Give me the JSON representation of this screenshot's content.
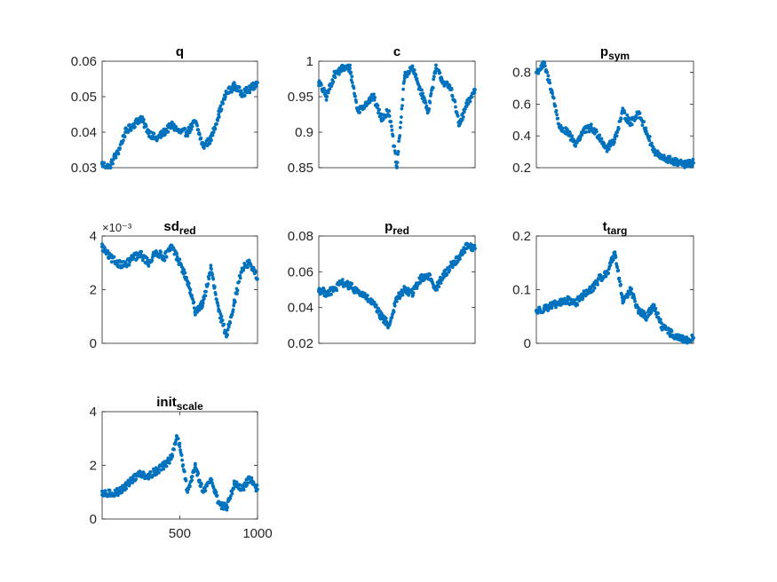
{
  "figure": {
    "background": "#ffffff",
    "marker_color": "#0072BD"
  },
  "chart_data": [
    {
      "id": "q",
      "type": "scatter",
      "title": "q",
      "title_sub": "",
      "xlabel": "",
      "ylabel": "",
      "xlim": [
        1,
        1000
      ],
      "ylim": [
        0.03,
        0.06
      ],
      "yticks": [
        0.03,
        0.04,
        0.05,
        0.06
      ],
      "ytick_labels": [
        "0.03",
        "0.04",
        "0.05",
        "0.06"
      ],
      "xticks": [],
      "xtick_labels": [],
      "exponent_label": "",
      "x": [
        1,
        50,
        80,
        100,
        150,
        200,
        250,
        300,
        350,
        400,
        450,
        500,
        550,
        600,
        650,
        700,
        750,
        800,
        850,
        900,
        950,
        1000
      ],
      "y": [
        0.031,
        0.03,
        0.033,
        0.034,
        0.04,
        0.042,
        0.044,
        0.04,
        0.038,
        0.04,
        0.042,
        0.04,
        0.04,
        0.043,
        0.036,
        0.038,
        0.045,
        0.051,
        0.053,
        0.051,
        0.052,
        0.054
      ]
    },
    {
      "id": "c",
      "type": "scatter",
      "title": "c",
      "title_sub": "",
      "xlabel": "",
      "ylabel": "",
      "xlim": [
        1,
        1000
      ],
      "ylim": [
        0.85,
        1
      ],
      "yticks": [
        0.85,
        0.9,
        0.95,
        1
      ],
      "ytick_labels": [
        "0.85",
        "0.9",
        "0.95",
        "1"
      ],
      "xticks": [],
      "xtick_labels": [],
      "exponent_label": "",
      "x": [
        1,
        50,
        100,
        150,
        200,
        250,
        300,
        350,
        400,
        450,
        500,
        550,
        600,
        650,
        700,
        750,
        800,
        850,
        900,
        950,
        1000
      ],
      "y": [
        0.97,
        0.95,
        0.98,
        0.99,
        0.99,
        0.93,
        0.94,
        0.95,
        0.92,
        0.93,
        0.85,
        0.98,
        0.99,
        0.96,
        0.93,
        0.99,
        0.97,
        0.96,
        0.91,
        0.94,
        0.96
      ]
    },
    {
      "id": "p_sym",
      "type": "scatter",
      "title": "p",
      "title_sub": "sym",
      "xlabel": "",
      "ylabel": "",
      "xlim": [
        1,
        1000
      ],
      "ylim": [
        0.2,
        0.87
      ],
      "yticks": [
        0.2,
        0.4,
        0.6,
        0.8
      ],
      "ytick_labels": [
        "0.2",
        "0.4",
        "0.6",
        "0.8"
      ],
      "xticks": [],
      "xtick_labels": [],
      "exponent_label": "",
      "x": [
        1,
        50,
        80,
        100,
        150,
        200,
        250,
        300,
        350,
        400,
        450,
        500,
        550,
        600,
        650,
        700,
        750,
        800,
        850,
        900,
        950,
        1000
      ],
      "y": [
        0.8,
        0.85,
        0.75,
        0.68,
        0.45,
        0.42,
        0.35,
        0.43,
        0.45,
        0.4,
        0.32,
        0.38,
        0.55,
        0.48,
        0.55,
        0.43,
        0.3,
        0.26,
        0.25,
        0.23,
        0.22,
        0.23
      ]
    },
    {
      "id": "sd_red",
      "type": "scatter",
      "title": "sd",
      "title_sub": "red",
      "xlabel": "",
      "ylabel": "",
      "xlim": [
        1,
        1000
      ],
      "ylim": [
        0,
        4
      ],
      "yticks": [
        0,
        2,
        4
      ],
      "ytick_labels": [
        "0",
        "2",
        "4"
      ],
      "xticks": [],
      "xtick_labels": [],
      "exponent_label": "×10⁻³",
      "x": [
        1,
        50,
        100,
        150,
        200,
        250,
        300,
        350,
        400,
        450,
        500,
        550,
        600,
        650,
        700,
        750,
        800,
        850,
        900,
        950,
        1000
      ],
      "y": [
        3.6,
        3.2,
        3.0,
        2.9,
        3.2,
        3.3,
        3.0,
        3.4,
        3.2,
        3.6,
        3.0,
        2.3,
        1.2,
        1.5,
        2.8,
        1.2,
        0.3,
        1.5,
        2.8,
        3.0,
        2.4
      ]
    },
    {
      "id": "p_red",
      "type": "scatter",
      "title": "p",
      "title_sub": "red",
      "xlabel": "",
      "ylabel": "",
      "xlim": [
        1,
        1000
      ],
      "ylim": [
        0.02,
        0.08
      ],
      "yticks": [
        0.02,
        0.04,
        0.06,
        0.08
      ],
      "ytick_labels": [
        "0.02",
        "0.04",
        "0.06",
        "0.08"
      ],
      "xticks": [],
      "xtick_labels": [],
      "exponent_label": "",
      "x": [
        1,
        50,
        100,
        150,
        200,
        250,
        300,
        350,
        400,
        450,
        500,
        550,
        600,
        650,
        700,
        750,
        800,
        850,
        900,
        950,
        1000
      ],
      "y": [
        0.05,
        0.048,
        0.05,
        0.054,
        0.052,
        0.049,
        0.046,
        0.042,
        0.035,
        0.03,
        0.045,
        0.05,
        0.048,
        0.056,
        0.058,
        0.051,
        0.058,
        0.064,
        0.068,
        0.075,
        0.073
      ]
    },
    {
      "id": "t_targ",
      "type": "scatter",
      "title": "t",
      "title_sub": "targ",
      "xlabel": "",
      "ylabel": "",
      "xlim": [
        1,
        1000
      ],
      "ylim": [
        0,
        0.2
      ],
      "yticks": [
        0,
        0.1,
        0.2
      ],
      "ytick_labels": [
        "0",
        "0.1",
        "0.2"
      ],
      "xticks": [],
      "xtick_labels": [],
      "exponent_label": "",
      "x": [
        1,
        50,
        100,
        150,
        200,
        250,
        300,
        350,
        400,
        450,
        500,
        550,
        600,
        650,
        700,
        750,
        800,
        850,
        900,
        950,
        1000
      ],
      "y": [
        0.06,
        0.065,
        0.07,
        0.075,
        0.08,
        0.075,
        0.09,
        0.1,
        0.12,
        0.13,
        0.17,
        0.08,
        0.1,
        0.06,
        0.05,
        0.07,
        0.03,
        0.02,
        0.01,
        0.005,
        0.01
      ]
    },
    {
      "id": "init_scale",
      "type": "scatter",
      "title": "init",
      "title_sub": "scale",
      "xlabel": "",
      "ylabel": "",
      "xlim": [
        1,
        1000
      ],
      "ylim": [
        0,
        4
      ],
      "yticks": [
        0,
        2,
        4
      ],
      "ytick_labels": [
        "0",
        "2",
        "4"
      ],
      "xticks": [
        500,
        1000
      ],
      "xtick_labels": [
        "500",
        "1000"
      ],
      "exponent_label": "",
      "x": [
        1,
        50,
        100,
        150,
        200,
        250,
        300,
        350,
        400,
        450,
        480,
        500,
        550,
        600,
        650,
        700,
        750,
        800,
        850,
        900,
        950,
        1000
      ],
      "y": [
        0.9,
        0.95,
        1.0,
        1.2,
        1.5,
        1.7,
        1.6,
        1.8,
        2.0,
        2.3,
        3.1,
        2.7,
        1.0,
        2.0,
        1.0,
        1.5,
        0.6,
        0.4,
        1.3,
        1.1,
        1.5,
        1.1
      ]
    }
  ]
}
